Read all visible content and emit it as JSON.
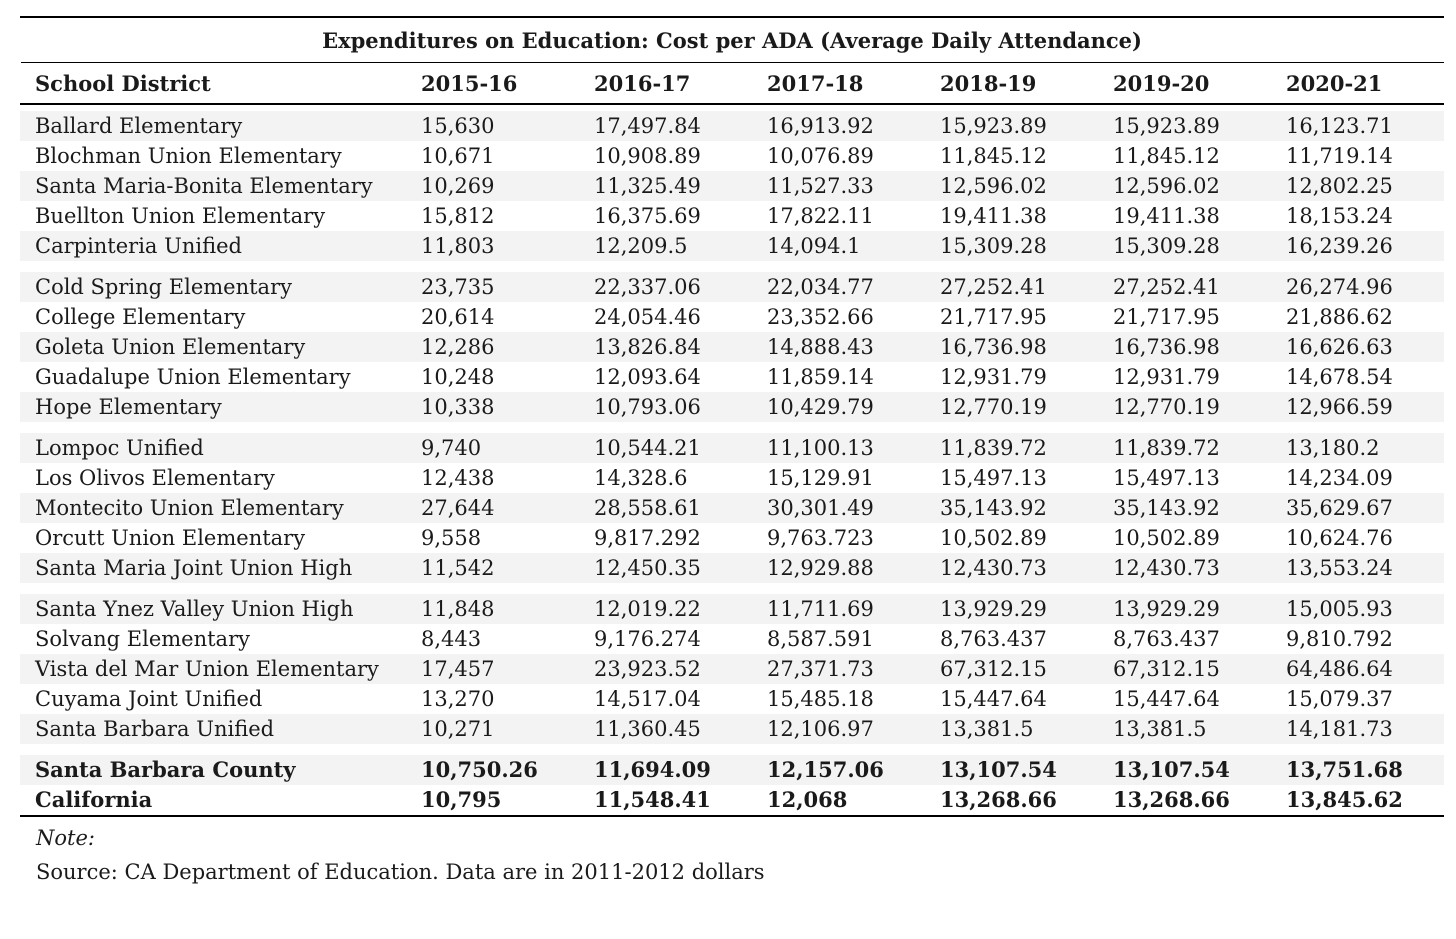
{
  "title": "Expenditures on Education: Cost per ADA (Average Daily Attendance)",
  "columns": [
    "School District",
    "2015-16",
    "2016-17",
    "2017-18",
    "2018-19",
    "2019-20",
    "2020-21"
  ],
  "groups": [
    [
      [
        "Ballard Elementary",
        "15,630",
        "17,497.84",
        "16,913.92",
        "15,923.89",
        "15,923.89",
        "16,123.71"
      ],
      [
        "Blochman Union Elementary",
        "10,671",
        "10,908.89",
        "10,076.89",
        "11,845.12",
        "11,845.12",
        "11,719.14"
      ],
      [
        "Santa Maria-Bonita Elementary",
        "10,269",
        "11,325.49",
        "11,527.33",
        "12,596.02",
        "12,596.02",
        "12,802.25"
      ],
      [
        "Buellton Union Elementary",
        "15,812",
        "16,375.69",
        "17,822.11",
        "19,411.38",
        "19,411.38",
        "18,153.24"
      ],
      [
        "Carpinteria Unified",
        "11,803",
        "12,209.5",
        "14,094.1",
        "15,309.28",
        "15,309.28",
        "16,239.26"
      ]
    ],
    [
      [
        "Cold Spring Elementary",
        "23,735",
        "22,337.06",
        "22,034.77",
        "27,252.41",
        "27,252.41",
        "26,274.96"
      ],
      [
        "College Elementary",
        "20,614",
        "24,054.46",
        "23,352.66",
        "21,717.95",
        "21,717.95",
        "21,886.62"
      ],
      [
        "Goleta Union Elementary",
        "12,286",
        "13,826.84",
        "14,888.43",
        "16,736.98",
        "16,736.98",
        "16,626.63"
      ],
      [
        "Guadalupe Union Elementary",
        "10,248",
        "12,093.64",
        "11,859.14",
        "12,931.79",
        "12,931.79",
        "14,678.54"
      ],
      [
        "Hope Elementary",
        "10,338",
        "10,793.06",
        "10,429.79",
        "12,770.19",
        "12,770.19",
        "12,966.59"
      ]
    ],
    [
      [
        "Lompoc Unified",
        "9,740",
        "10,544.21",
        "11,100.13",
        "11,839.72",
        "11,839.72",
        "13,180.2"
      ],
      [
        "Los Olivos Elementary",
        "12,438",
        "14,328.6",
        "15,129.91",
        "15,497.13",
        "15,497.13",
        "14,234.09"
      ],
      [
        "Montecito Union Elementary",
        "27,644",
        "28,558.61",
        "30,301.49",
        "35,143.92",
        "35,143.92",
        "35,629.67"
      ],
      [
        "Orcutt Union Elementary",
        "9,558",
        "9,817.292",
        "9,763.723",
        "10,502.89",
        "10,502.89",
        "10,624.76"
      ],
      [
        "Santa Maria Joint Union High",
        "11,542",
        "12,450.35",
        "12,929.88",
        "12,430.73",
        "12,430.73",
        "13,553.24"
      ]
    ],
    [
      [
        "Santa Ynez Valley Union High",
        "11,848",
        "12,019.22",
        "11,711.69",
        "13,929.29",
        "13,929.29",
        "15,005.93"
      ],
      [
        "Solvang Elementary",
        "8,443",
        "9,176.274",
        "8,587.591",
        "8,763.437",
        "8,763.437",
        "9,810.792"
      ],
      [
        "Vista del Mar Union Elementary",
        "17,457",
        "23,923.52",
        "27,371.73",
        "67,312.15",
        "67,312.15",
        "64,486.64"
      ],
      [
        "Cuyama Joint Unified",
        "13,270",
        "14,517.04",
        "15,485.18",
        "15,447.64",
        "15,447.64",
        "15,079.37"
      ],
      [
        "Santa Barbara Unified",
        "10,271",
        "11,360.45",
        "12,106.97",
        "13,381.5",
        "13,381.5",
        "14,181.73"
      ]
    ]
  ],
  "totals": [
    [
      "Santa Barbara County",
      "10,750.26",
      "11,694.09",
      "12,157.06",
      "13,107.54",
      "13,107.54",
      "13,751.68"
    ],
    [
      "California",
      "10,795",
      "11,548.41",
      "12,068",
      "13,268.66",
      "13,268.66",
      "13,845.62"
    ]
  ],
  "note_label": "Note:",
  "source": "Source: CA Department of Education. Data are in 2011-2012 dollars"
}
